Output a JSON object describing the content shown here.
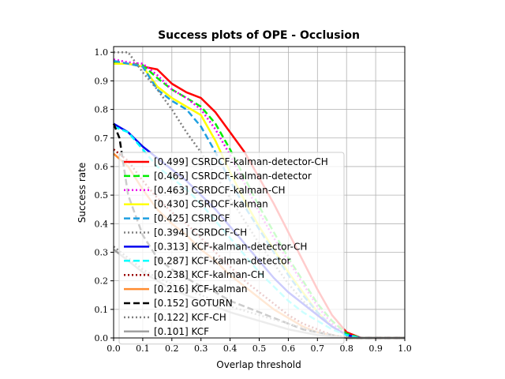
{
  "chart_data": {
    "type": "line",
    "title": "Success plots of OPE - Occlusion",
    "xlabel": "Overlap threshold",
    "ylabel": "Success rate",
    "xlim": [
      0,
      1
    ],
    "ylim": [
      0,
      1.02
    ],
    "xticks": [
      "0.0",
      "0.1",
      "0.2",
      "0.3",
      "0.4",
      "0.5",
      "0.6",
      "0.7",
      "0.8",
      "0.9",
      "1.0"
    ],
    "yticks": [
      "0.0",
      "0.1",
      "0.2",
      "0.3",
      "0.4",
      "0.5",
      "0.6",
      "0.7",
      "0.8",
      "0.9",
      "1.0"
    ],
    "grid": true,
    "legend_position": "lower-left",
    "series": [
      {
        "name": "[0.499] CSRDCF-kalman-detector-CH",
        "color": "#ff0000",
        "dash": "solid",
        "x": [
          0,
          0.05,
          0.1,
          0.15,
          0.2,
          0.25,
          0.3,
          0.35,
          0.4,
          0.45,
          0.5,
          0.55,
          0.6,
          0.65,
          0.7,
          0.75,
          0.8,
          0.85,
          0.9,
          0.95,
          1.0
        ],
        "y": [
          0.96,
          0.96,
          0.95,
          0.94,
          0.89,
          0.86,
          0.84,
          0.79,
          0.72,
          0.65,
          0.56,
          0.47,
          0.37,
          0.27,
          0.17,
          0.08,
          0.02,
          0.0,
          0.0,
          0.0,
          0.0
        ]
      },
      {
        "name": "[0.465] CSRDCF-kalman-detector",
        "color": "#00ee00",
        "dash": "dashed",
        "x": [
          0,
          0.05,
          0.1,
          0.15,
          0.2,
          0.25,
          0.3,
          0.35,
          0.4,
          0.45,
          0.5,
          0.55,
          0.6,
          0.65,
          0.7,
          0.75,
          0.8,
          0.85,
          0.9,
          0.95,
          1.0
        ],
        "y": [
          0.965,
          0.96,
          0.955,
          0.91,
          0.87,
          0.84,
          0.81,
          0.75,
          0.66,
          0.56,
          0.46,
          0.37,
          0.28,
          0.2,
          0.12,
          0.06,
          0.015,
          0.0,
          0.0,
          0.0,
          0.0
        ]
      },
      {
        "name": "[0.463] CSRDCF-kalman-CH",
        "color": "#ee00ee",
        "dash": "dotted",
        "x": [
          0,
          0.05,
          0.1,
          0.15,
          0.2,
          0.25,
          0.3,
          0.35,
          0.4,
          0.45,
          0.5,
          0.55,
          0.6,
          0.65,
          0.7,
          0.75,
          0.8,
          0.85,
          0.9,
          0.95,
          1.0
        ],
        "y": [
          0.975,
          0.965,
          0.96,
          0.92,
          0.87,
          0.84,
          0.8,
          0.73,
          0.64,
          0.54,
          0.44,
          0.35,
          0.27,
          0.19,
          0.11,
          0.05,
          0.01,
          0.0,
          0.0,
          0.0,
          0.0
        ]
      },
      {
        "name": "[0.430] CSRDCF-kalman",
        "color": "#ffff00",
        "dash": "solid",
        "x": [
          0,
          0.05,
          0.1,
          0.15,
          0.2,
          0.25,
          0.3,
          0.35,
          0.4,
          0.45,
          0.5,
          0.55,
          0.6,
          0.65,
          0.7,
          0.75,
          0.8,
          0.85,
          0.9,
          0.95,
          1.0
        ],
        "y": [
          0.96,
          0.96,
          0.95,
          0.88,
          0.84,
          0.81,
          0.78,
          0.69,
          0.58,
          0.48,
          0.39,
          0.31,
          0.23,
          0.16,
          0.09,
          0.04,
          0.01,
          0.0,
          0.0,
          0.0,
          0.0
        ]
      },
      {
        "name": "[0.425] CSRDCF",
        "color": "#1f9fe0",
        "dash": "dashed",
        "x": [
          0,
          0.05,
          0.1,
          0.15,
          0.2,
          0.25,
          0.3,
          0.35,
          0.4,
          0.45,
          0.5,
          0.55,
          0.6,
          0.65,
          0.7,
          0.75,
          0.8,
          0.85,
          0.9,
          0.95,
          1.0
        ],
        "y": [
          0.97,
          0.96,
          0.95,
          0.87,
          0.83,
          0.8,
          0.74,
          0.65,
          0.55,
          0.46,
          0.38,
          0.3,
          0.22,
          0.15,
          0.09,
          0.04,
          0.01,
          0.0,
          0.0,
          0.0,
          0.0
        ]
      },
      {
        "name": "[0.394] CSRDCF-CH",
        "color": "#808080",
        "dash": "dotted",
        "x": [
          0,
          0.05,
          0.1,
          0.15,
          0.2,
          0.25,
          0.3,
          0.35,
          0.4,
          0.45,
          0.5,
          0.55,
          0.6,
          0.65,
          0.7,
          0.75,
          0.8,
          0.85,
          0.9,
          0.95,
          1.0
        ],
        "y": [
          1.0,
          1.0,
          0.93,
          0.87,
          0.8,
          0.72,
          0.65,
          0.57,
          0.49,
          0.41,
          0.33,
          0.26,
          0.19,
          0.13,
          0.08,
          0.04,
          0.01,
          0.0,
          0.0,
          0.0,
          0.0
        ]
      },
      {
        "name": "[0.313] KCF-kalman-detector-CH",
        "color": "#0000ee",
        "dash": "solid",
        "x": [
          0,
          0.05,
          0.1,
          0.15,
          0.2,
          0.25,
          0.3,
          0.35,
          0.4,
          0.45,
          0.5,
          0.55,
          0.6,
          0.65,
          0.7,
          0.75,
          0.8,
          0.85,
          0.9,
          0.95,
          1.0
        ],
        "y": [
          0.75,
          0.72,
          0.67,
          0.63,
          0.59,
          0.55,
          0.5,
          0.45,
          0.39,
          0.33,
          0.27,
          0.21,
          0.16,
          0.12,
          0.08,
          0.04,
          0.01,
          0.0,
          0.0,
          0.0,
          0.0
        ]
      },
      {
        "name": "[0.287] KCF-kalman-detector",
        "color": "#00ffff",
        "dash": "dashed",
        "x": [
          0,
          0.05,
          0.1,
          0.15,
          0.2,
          0.25,
          0.3,
          0.35,
          0.4,
          0.45,
          0.5,
          0.55,
          0.6,
          0.65,
          0.7,
          0.75,
          0.8,
          0.85,
          0.9,
          0.95,
          1.0
        ],
        "y": [
          0.74,
          0.72,
          0.66,
          0.6,
          0.56,
          0.52,
          0.47,
          0.41,
          0.35,
          0.29,
          0.23,
          0.18,
          0.13,
          0.09,
          0.06,
          0.03,
          0.01,
          0.0,
          0.0,
          0.0,
          0.0
        ]
      },
      {
        "name": "[0.238] KCF-kalman-CH",
        "color": "#990000",
        "dash": "dotted",
        "x": [
          0,
          0.05,
          0.1,
          0.15,
          0.2,
          0.25,
          0.3,
          0.35,
          0.4,
          0.45,
          0.5,
          0.55,
          0.6,
          0.65,
          0.7,
          0.75,
          0.8,
          0.85,
          0.9,
          0.95,
          1.0
        ],
        "y": [
          0.66,
          0.62,
          0.55,
          0.49,
          0.44,
          0.4,
          0.35,
          0.3,
          0.25,
          0.2,
          0.16,
          0.12,
          0.08,
          0.05,
          0.03,
          0.01,
          0.0,
          0.0,
          0.0,
          0.0,
          0.0
        ]
      },
      {
        "name": "[0.216] KCF-kalman",
        "color": "#ff8c30",
        "dash": "solid",
        "x": [
          0,
          0.05,
          0.1,
          0.15,
          0.2,
          0.25,
          0.3,
          0.35,
          0.4,
          0.45,
          0.5,
          0.55,
          0.6,
          0.65,
          0.7,
          0.75,
          0.8,
          0.85,
          0.9,
          0.95,
          1.0
        ],
        "y": [
          0.645,
          0.6,
          0.52,
          0.45,
          0.4,
          0.36,
          0.31,
          0.27,
          0.22,
          0.18,
          0.14,
          0.1,
          0.07,
          0.04,
          0.02,
          0.01,
          0.0,
          0.0,
          0.0,
          0.0,
          0.0
        ]
      },
      {
        "name": "[0.152] GOTURN",
        "color": "#000000",
        "dash": "dashed",
        "x": [
          0,
          0.02,
          0.05,
          0.1,
          0.15,
          0.2,
          0.25,
          0.3,
          0.35,
          0.4,
          0.45,
          0.5,
          0.55,
          0.6,
          0.65,
          0.7,
          0.75,
          0.8,
          0.85,
          0.9,
          0.95,
          1.0
        ],
        "y": [
          0.75,
          0.7,
          0.5,
          0.36,
          0.28,
          0.24,
          0.21,
          0.18,
          0.16,
          0.13,
          0.11,
          0.09,
          0.07,
          0.05,
          0.03,
          0.02,
          0.01,
          0.0,
          0.0,
          0.0,
          0.0,
          0.0
        ]
      },
      {
        "name": "[0.122] KCF-CH",
        "color": "#808080",
        "dash": "dotted",
        "x": [
          0,
          0.05,
          0.1,
          0.15,
          0.2,
          0.25,
          0.3,
          0.35,
          0.4,
          0.45,
          0.5,
          0.55,
          0.6,
          0.65,
          0.7,
          0.75,
          0.8,
          0.85,
          0.9,
          0.95,
          1.0
        ],
        "y": [
          0.32,
          0.28,
          0.24,
          0.21,
          0.19,
          0.17,
          0.15,
          0.13,
          0.11,
          0.095,
          0.08,
          0.065,
          0.05,
          0.035,
          0.02,
          0.01,
          0.0,
          0.0,
          0.0,
          0.0,
          0.0
        ]
      },
      {
        "name": "[0.101] KCF",
        "color": "#a0a0a0",
        "dash": "solid",
        "x": [
          0,
          0.05,
          0.1,
          0.15,
          0.2,
          0.25,
          0.3,
          0.35,
          0.4,
          0.45,
          0.5,
          0.55,
          0.6,
          0.65,
          0.7,
          0.75,
          0.8,
          0.85,
          0.9,
          0.95,
          1.0
        ],
        "y": [
          0.31,
          0.27,
          0.23,
          0.2,
          0.17,
          0.15,
          0.13,
          0.11,
          0.09,
          0.075,
          0.06,
          0.045,
          0.03,
          0.02,
          0.01,
          0.005,
          0.0,
          0.0,
          0.0,
          0.0,
          0.0
        ]
      }
    ]
  }
}
